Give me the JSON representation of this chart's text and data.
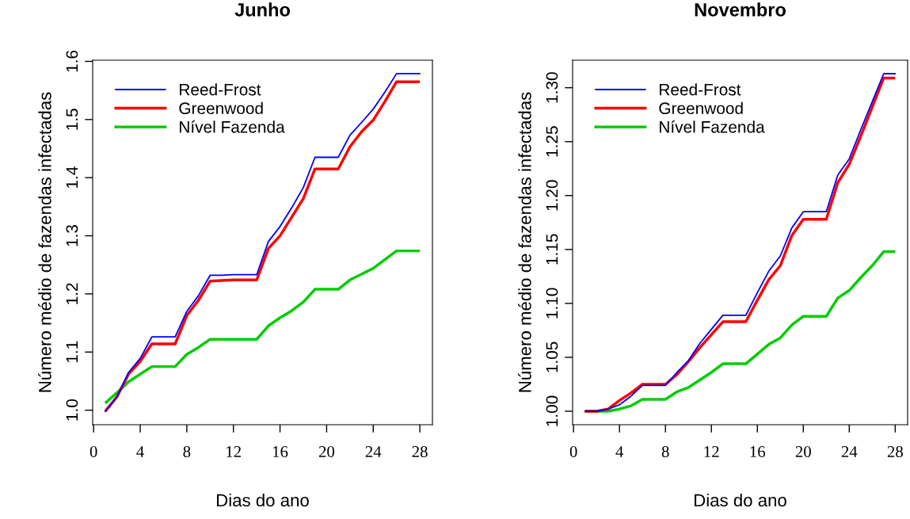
{
  "chart_data": [
    {
      "type": "line",
      "title": "Junho",
      "xlabel": "Dias do ano",
      "ylabel": "Número médio de fazendas infectadas",
      "legend": "top left",
      "grid": false,
      "x": [
        1,
        2,
        3,
        4,
        5,
        6,
        7,
        8,
        9,
        10,
        11,
        12,
        13,
        14,
        15,
        16,
        17,
        18,
        19,
        20,
        21,
        22,
        23,
        24,
        25,
        26,
        27,
        28
      ],
      "series": [
        {
          "name": "Reed-Frost",
          "color": "#0000ff",
          "values": [
            0.998,
            1.022,
            1.065,
            1.089,
            1.126,
            1.126,
            1.126,
            1.17,
            1.197,
            1.232,
            1.232,
            1.233,
            1.233,
            1.233,
            1.29,
            1.316,
            1.348,
            1.383,
            1.435,
            1.435,
            1.435,
            1.473,
            1.495,
            1.518,
            1.547,
            1.579,
            1.579,
            1.579
          ]
        },
        {
          "name": "Greenwood",
          "color": "#ff0000",
          "values": [
            0.998,
            1.023,
            1.062,
            1.084,
            1.114,
            1.114,
            1.114,
            1.163,
            1.189,
            1.222,
            1.223,
            1.224,
            1.224,
            1.224,
            1.278,
            1.3,
            1.332,
            1.364,
            1.415,
            1.415,
            1.415,
            1.453,
            1.479,
            1.499,
            1.531,
            1.565,
            1.565,
            1.565
          ]
        },
        {
          "name": "Nível Fazenda",
          "color": "#00cd00",
          "values": [
            1.012,
            1.03,
            1.049,
            1.062,
            1.075,
            1.075,
            1.075,
            1.096,
            1.108,
            1.122,
            1.122,
            1.122,
            1.122,
            1.122,
            1.145,
            1.159,
            1.171,
            1.186,
            1.208,
            1.208,
            1.208,
            1.224,
            1.234,
            1.244,
            1.259,
            1.274,
            1.274,
            1.274
          ]
        }
      ],
      "xlim": [
        -0.08,
        29.08
      ],
      "ylim": [
        0.975,
        1.602
      ],
      "xticks": [
        0,
        4,
        8,
        12,
        16,
        20,
        24,
        28
      ],
      "yticks": [
        {
          "value": 1.0,
          "label": "1.0"
        },
        1.1,
        1.2,
        1.3,
        1.4,
        1.5,
        1.6
      ]
    },
    {
      "type": "line",
      "title": "Novembro",
      "xlabel": "Dias do ano",
      "ylabel": "Número médio de fazendas infectadas",
      "legend": "top left",
      "grid": false,
      "x": [
        1,
        2,
        3,
        4,
        5,
        6,
        7,
        8,
        9,
        10,
        11,
        12,
        13,
        14,
        15,
        16,
        17,
        18,
        19,
        20,
        21,
        22,
        23,
        24,
        25,
        26,
        27,
        28
      ],
      "series": [
        {
          "name": "Reed-Frost",
          "color": "#0000ff",
          "values": [
            1.0,
            1.0,
            1.002,
            1.006,
            1.014,
            1.024,
            1.024,
            1.024,
            1.036,
            1.047,
            1.063,
            1.076,
            1.089,
            1.089,
            1.089,
            1.11,
            1.13,
            1.144,
            1.17,
            1.185,
            1.185,
            1.185,
            1.219,
            1.234,
            1.261,
            1.287,
            1.313,
            1.313
          ]
        },
        {
          "name": "Greenwood",
          "color": "#ff0000",
          "values": [
            1.0,
            1.0,
            1.002,
            1.01,
            1.017,
            1.025,
            1.025,
            1.025,
            1.034,
            1.046,
            1.059,
            1.071,
            1.083,
            1.083,
            1.083,
            1.103,
            1.122,
            1.135,
            1.163,
            1.178,
            1.178,
            1.178,
            1.212,
            1.229,
            1.255,
            1.282,
            1.309,
            1.309
          ]
        },
        {
          "name": "Nível Fazenda",
          "color": "#00cd00",
          "values": [
            1.0,
            1.0,
            1.0,
            1.002,
            1.005,
            1.011,
            1.011,
            1.011,
            1.018,
            1.022,
            1.029,
            1.036,
            1.044,
            1.044,
            1.044,
            1.053,
            1.062,
            1.068,
            1.08,
            1.088,
            1.088,
            1.088,
            1.105,
            1.112,
            1.124,
            1.135,
            1.148,
            1.148
          ]
        }
      ],
      "xlim": [
        -0.08,
        29.08
      ],
      "ylim": [
        0.9875,
        1.3255
      ],
      "xticks": [
        0,
        4,
        8,
        12,
        16,
        20,
        24,
        28
      ],
      "yticks": [
        {
          "value": 1.0,
          "label": "1.00"
        },
        {
          "value": 1.05,
          "label": "1.05"
        },
        {
          "value": 1.1,
          "label": "1.10"
        },
        {
          "value": 1.15,
          "label": "1.15"
        },
        {
          "value": 1.2,
          "label": "1.20"
        },
        {
          "value": 1.25,
          "label": "1.25"
        },
        {
          "value": 1.3,
          "label": "1.30"
        }
      ]
    }
  ]
}
